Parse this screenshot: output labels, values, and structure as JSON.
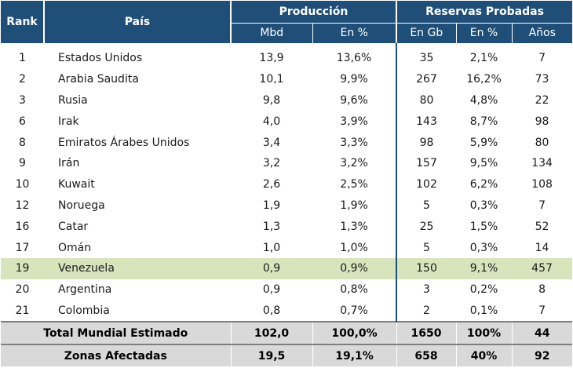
{
  "headers": {
    "rank": "Rank",
    "pais": "País",
    "produccion": "Producción",
    "reservas": "Reservas Probadas",
    "mbd": "Mbd",
    "en_pct_prod": "En %",
    "en_gb": "En Gb",
    "en_pct_res": "En %",
    "anos": "Años"
  },
  "rows": [
    {
      "rank": "1",
      "pais": "Estados Unidos",
      "mbd": "13,9",
      "prod_pct": "13,6%",
      "gb": "35",
      "res_pct": "2,1%",
      "anos": "7"
    },
    {
      "rank": "2",
      "pais": "Arabia Saudita",
      "mbd": "10,1",
      "prod_pct": "9,9%",
      "gb": "267",
      "res_pct": "16,2%",
      "anos": "73"
    },
    {
      "rank": "3",
      "pais": "Rusia",
      "mbd": "9,8",
      "prod_pct": "9,6%",
      "gb": "80",
      "res_pct": "4,8%",
      "anos": "22"
    },
    {
      "rank": "6",
      "pais": "Irak",
      "mbd": "4,0",
      "prod_pct": "3,9%",
      "gb": "143",
      "res_pct": "8,7%",
      "anos": "98"
    },
    {
      "rank": "8",
      "pais": "Emiratos Árabes Unidos",
      "mbd": "3,4",
      "prod_pct": "3,3%",
      "gb": "98",
      "res_pct": "5,9%",
      "anos": "80"
    },
    {
      "rank": "9",
      "pais": "Irán",
      "mbd": "3,2",
      "prod_pct": "3,2%",
      "gb": "157",
      "res_pct": "9,5%",
      "anos": "134"
    },
    {
      "rank": "10",
      "pais": "Kuwait",
      "mbd": "2,6",
      "prod_pct": "2,5%",
      "gb": "102",
      "res_pct": "6,2%",
      "anos": "108"
    },
    {
      "rank": "12",
      "pais": "Noruega",
      "mbd": "1,9",
      "prod_pct": "1,9%",
      "gb": "5",
      "res_pct": "0,3%",
      "anos": "7"
    },
    {
      "rank": "16",
      "pais": "Catar",
      "mbd": "1,3",
      "prod_pct": "1,3%",
      "gb": "25",
      "res_pct": "1,5%",
      "anos": "52"
    },
    {
      "rank": "17",
      "pais": "Omán",
      "mbd": "1,0",
      "prod_pct": "1,0%",
      "gb": "5",
      "res_pct": "0,3%",
      "anos": "14"
    },
    {
      "rank": "19",
      "pais": "Venezuela",
      "mbd": "0,9",
      "prod_pct": "0,9%",
      "gb": "150",
      "res_pct": "9,1%",
      "anos": "457"
    },
    {
      "rank": "20",
      "pais": "Argentina",
      "mbd": "0,9",
      "prod_pct": "0,8%",
      "gb": "3",
      "res_pct": "0,2%",
      "anos": "8"
    },
    {
      "rank": "21",
      "pais": "Colombia",
      "mbd": "0,8",
      "prod_pct": "0,7%",
      "gb": "2",
      "res_pct": "0,1%",
      "anos": "7"
    }
  ],
  "totals": [
    {
      "label": "Total Mundial Estimado",
      "mbd": "102,0",
      "prod_pct": "100,0%",
      "gb": "1650",
      "res_pct": "100%",
      "anos": "44"
    },
    {
      "label": "Zonas Afectadas",
      "mbd": "19,5",
      "prod_pct": "19,1%",
      "gb": "658",
      "res_pct": "40%",
      "anos": "92"
    }
  ],
  "highlight_row": "Venezuela",
  "colors": {
    "header": "#1f4e79",
    "highlight": "#d8e4bc",
    "totals": "#d9d9d9"
  }
}
